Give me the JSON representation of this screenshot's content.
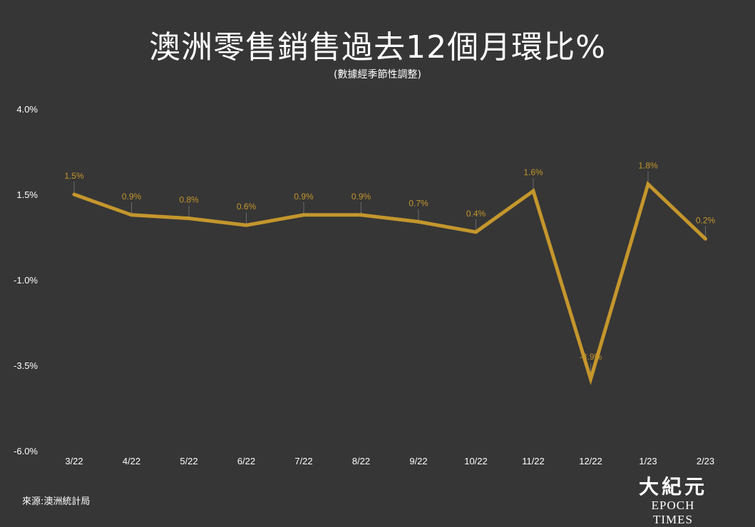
{
  "chart_data": {
    "type": "line",
    "title": "澳洲零售銷售過去12個月環比%",
    "subtitle": "(數據經季節性調整)",
    "categories": [
      "3/22",
      "4/22",
      "5/22",
      "6/22",
      "7/22",
      "8/22",
      "9/22",
      "10/22",
      "11/22",
      "12/22",
      "1/23",
      "2/23"
    ],
    "values": [
      1.5,
      0.9,
      0.8,
      0.6,
      0.9,
      0.9,
      0.7,
      0.4,
      1.6,
      -3.9,
      1.8,
      0.2
    ],
    "data_labels": [
      "1.5%",
      "0.9%",
      "0.8%",
      "0.6%",
      "0.9%",
      "0.9%",
      "0.7%",
      "0.4%",
      "1.6%",
      "-3.9%",
      "1.8%",
      "0.2%"
    ],
    "yticks": [
      4.0,
      1.5,
      -1.0,
      -3.5,
      -6.0
    ],
    "ytick_labels": [
      "4.0%",
      "1.5%",
      "-1.0%",
      "-3.5%",
      "-6.0%"
    ],
    "ylim": [
      -6.0,
      4.0
    ],
    "grid": false,
    "colors": {
      "line": "#c4962c",
      "label": "#c4962c",
      "background": "#363636",
      "text": "#ffffff"
    }
  },
  "footer": {
    "source": "來源:澳洲統計局",
    "logo_cn": "大紀元",
    "logo_en": "EPOCH TIMES"
  }
}
